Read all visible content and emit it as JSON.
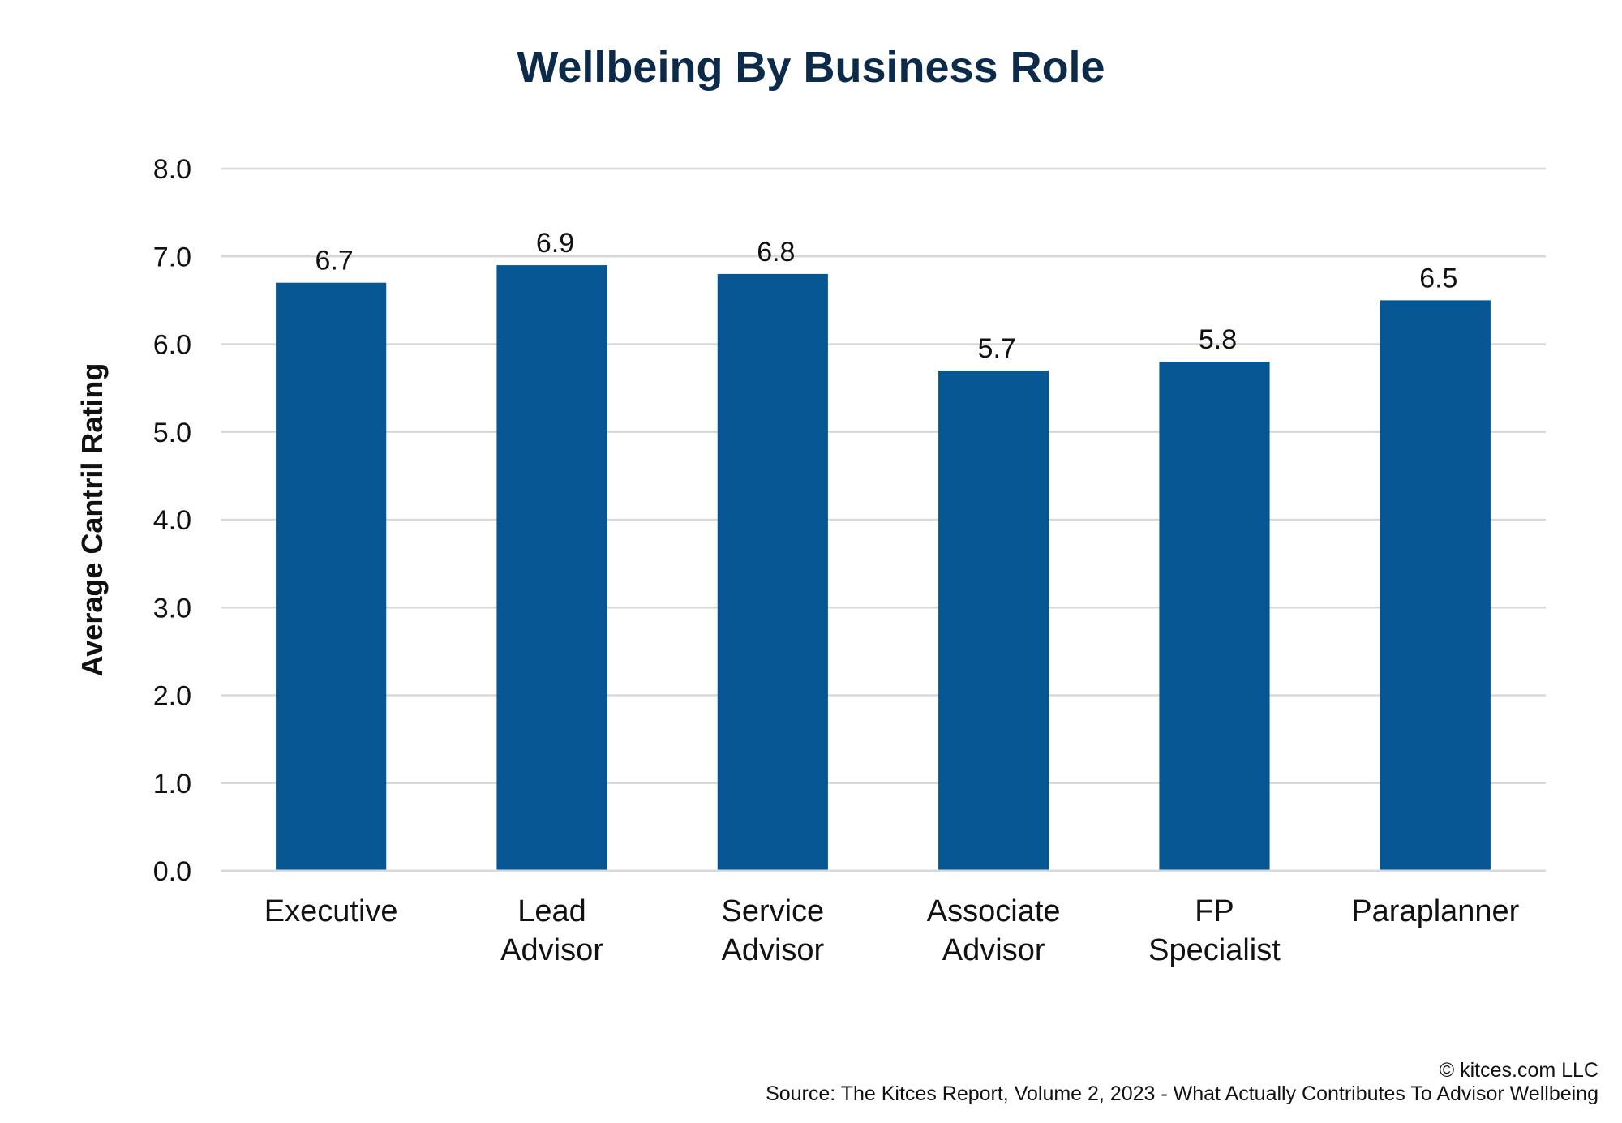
{
  "chart_data": {
    "type": "bar",
    "title": "Wellbeing By Business Role",
    "xlabel": "",
    "ylabel": "Average Cantril Rating",
    "categories": [
      [
        "Executive"
      ],
      [
        "Lead",
        "Advisor"
      ],
      [
        "Service",
        "Advisor"
      ],
      [
        "Associate",
        "Advisor"
      ],
      [
        "FP",
        "Specialist"
      ],
      [
        "Paraplanner"
      ]
    ],
    "values": [
      6.7,
      6.9,
      6.8,
      5.7,
      5.8,
      6.5
    ],
    "data_labels": [
      "6.7",
      "6.9",
      "6.8",
      "5.7",
      "5.8",
      "6.5"
    ],
    "ylim": [
      0,
      8
    ],
    "yticks": [
      "0.0",
      "1.0",
      "2.0",
      "3.0",
      "4.0",
      "5.0",
      "6.0",
      "7.0",
      "8.0"
    ],
    "grid": true,
    "legend": "none",
    "colors": {
      "bar": "#065694",
      "title": "#0c2a4a",
      "grid": "#d9d9d9"
    }
  },
  "footer": {
    "copyright": "© kitces.com LLC",
    "source": "Source: The Kitces Report, Volume 2, 2023 - What Actually Contributes To Advisor Wellbeing"
  }
}
